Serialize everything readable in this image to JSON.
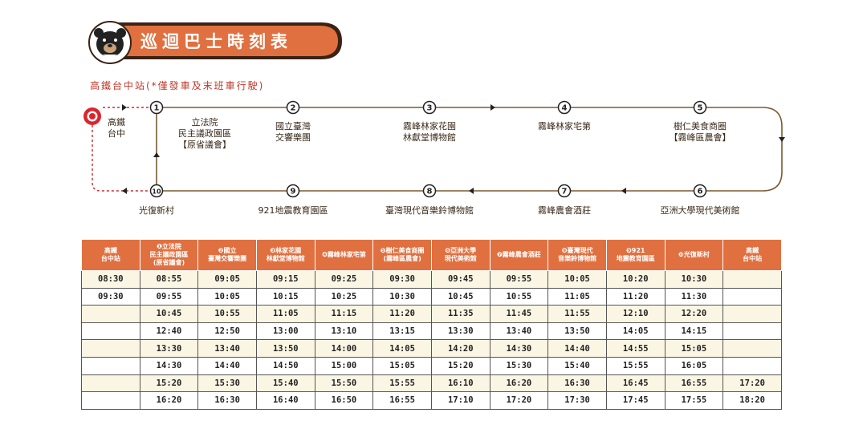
{
  "header": {
    "title": "巡迴巴士時刻表",
    "subtitle": "高鐵台中站(*僅發車及末班車行駛)"
  },
  "colors": {
    "accent": "#e07040",
    "banner_dark": "#3a2215",
    "origin_red": "#d9262c",
    "row_alt": "#fbf6e3"
  },
  "origin": {
    "name_line1": "高鐵",
    "name_line2": "台中"
  },
  "stops": [
    {
      "num": "1",
      "lines": [
        "立法院",
        "民主議政園區",
        "【原省議會】"
      ]
    },
    {
      "num": "2",
      "lines": [
        "國立臺灣",
        "交響樂團"
      ]
    },
    {
      "num": "3",
      "lines": [
        "霧峰林家花園",
        "林獻堂博物館"
      ]
    },
    {
      "num": "4",
      "lines": [
        "霧峰林家宅第"
      ]
    },
    {
      "num": "5",
      "lines": [
        "樹仁美食商圈",
        "【霧峰區農會】"
      ]
    },
    {
      "num": "6",
      "lines": [
        "亞洲大學現代美術館"
      ]
    },
    {
      "num": "7",
      "lines": [
        "霧峰農會酒莊"
      ]
    },
    {
      "num": "8",
      "lines": [
        "臺灣現代音樂鈴博物館"
      ]
    },
    {
      "num": "9",
      "lines": [
        "921地震教育園區"
      ]
    },
    {
      "num": "10",
      "lines": [
        "光復新村"
      ]
    }
  ],
  "table": {
    "headers": [
      [
        "高鐵",
        "台中站"
      ],
      [
        "❶立法院",
        "民主議政園區",
        "(原省議會)"
      ],
      [
        "❷國立",
        "臺灣交響樂團"
      ],
      [
        "❸林家花園",
        "林獻堂博物館"
      ],
      [
        "❹霧峰林家宅第"
      ],
      [
        "❺樹仁美食商圈",
        "(霧峰區農會)"
      ],
      [
        "❻亞洲大學",
        "現代美術館"
      ],
      [
        "❼霧峰農會酒莊"
      ],
      [
        "❽臺灣現代",
        "音樂鈴博物館"
      ],
      [
        "❾921",
        "地震教育園區"
      ],
      [
        "❿光復新村"
      ],
      [
        "高鐵",
        "台中站"
      ]
    ],
    "rows": [
      [
        "08:30",
        "08:55",
        "09:05",
        "09:15",
        "09:25",
        "09:30",
        "09:45",
        "09:55",
        "10:05",
        "10:20",
        "10:30",
        ""
      ],
      [
        "09:30",
        "09:55",
        "10:05",
        "10:15",
        "10:25",
        "10:30",
        "10:45",
        "10:55",
        "11:05",
        "11:20",
        "11:30",
        ""
      ],
      [
        "",
        "10:45",
        "10:55",
        "11:05",
        "11:15",
        "11:20",
        "11:35",
        "11:45",
        "11:55",
        "12:10",
        "12:20",
        ""
      ],
      [
        "",
        "12:40",
        "12:50",
        "13:00",
        "13:10",
        "13:15",
        "13:30",
        "13:40",
        "13:50",
        "14:05",
        "14:15",
        ""
      ],
      [
        "",
        "13:30",
        "13:40",
        "13:50",
        "14:00",
        "14:05",
        "14:20",
        "14:30",
        "14:40",
        "14:55",
        "15:05",
        ""
      ],
      [
        "",
        "14:30",
        "14:40",
        "14:50",
        "15:00",
        "15:05",
        "15:20",
        "15:30",
        "15:40",
        "15:55",
        "16:05",
        ""
      ],
      [
        "",
        "15:20",
        "15:30",
        "15:40",
        "15:50",
        "15:55",
        "16:10",
        "16:20",
        "16:30",
        "16:45",
        "16:55",
        "17:20"
      ],
      [
        "",
        "16:20",
        "16:30",
        "16:40",
        "16:50",
        "16:55",
        "17:10",
        "17:20",
        "17:30",
        "17:45",
        "17:55",
        "18:20"
      ]
    ]
  }
}
